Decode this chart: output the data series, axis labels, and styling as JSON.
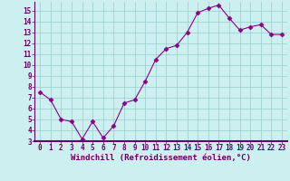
{
  "x": [
    0,
    1,
    2,
    3,
    4,
    5,
    6,
    7,
    8,
    9,
    10,
    11,
    12,
    13,
    14,
    15,
    16,
    17,
    18,
    19,
    20,
    21,
    22,
    23
  ],
  "y": [
    7.5,
    6.8,
    5.0,
    4.8,
    3.2,
    4.8,
    3.3,
    4.4,
    6.5,
    6.8,
    8.5,
    10.5,
    11.5,
    11.8,
    13.0,
    14.8,
    15.2,
    15.5,
    14.3,
    13.2,
    13.5,
    13.7,
    12.8,
    12.8
  ],
  "line_color": "#880088",
  "marker": "D",
  "marker_size": 2.5,
  "bg_color": "#ccf0f0",
  "grid_color": "#99cccc",
  "xlabel": "Windchill (Refroidissement éolien,°C)",
  "xlim": [
    -0.5,
    23.5
  ],
  "ylim": [
    3,
    15.8
  ],
  "yticks": [
    3,
    4,
    5,
    6,
    7,
    8,
    9,
    10,
    11,
    12,
    13,
    14,
    15
  ],
  "xticks": [
    0,
    1,
    2,
    3,
    4,
    5,
    6,
    7,
    8,
    9,
    10,
    11,
    12,
    13,
    14,
    15,
    16,
    17,
    18,
    19,
    20,
    21,
    22,
    23
  ],
  "tick_color": "#660066",
  "axis_line_color": "#660066",
  "tick_fontsize": 5.5,
  "xlabel_fontsize": 6.5,
  "border_color": "#660066",
  "separator_color": "#660066"
}
